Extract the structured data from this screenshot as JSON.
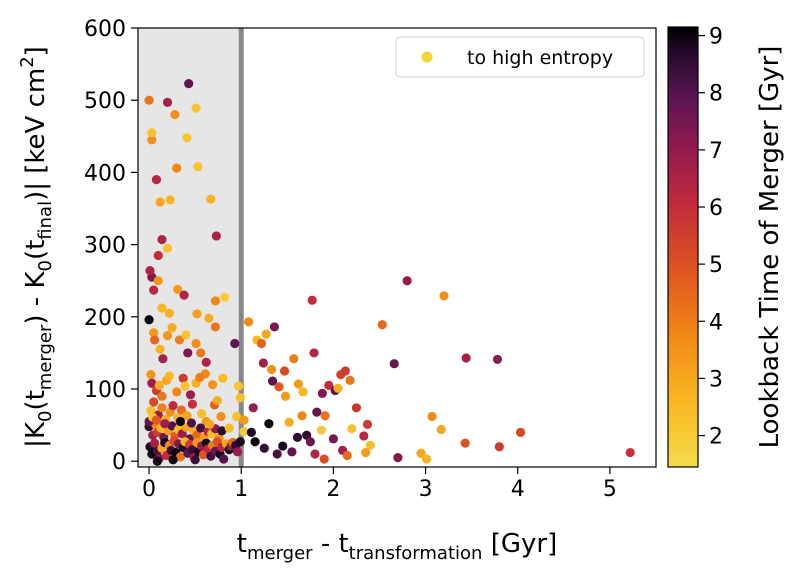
{
  "chart_data": {
    "type": "scatter",
    "xlabel": {
      "base_1": "t",
      "sub_1": "merger",
      "mid": " - t",
      "sub_2": "transformation",
      "end": " [Gyr]"
    },
    "ylabel": {
      "p1": "|K",
      "s1": "0",
      "p2": "(t",
      "s2": "merger",
      "p3": ") - K",
      "s3": "0",
      "p4": "(t",
      "s4": "final",
      "p5": ")| [keV cm",
      "sup": "2",
      "p6": "]"
    },
    "xlim": [
      -0.12,
      5.5
    ],
    "ylim": [
      -8,
      600
    ],
    "xticks": [
      0,
      1,
      2,
      3,
      4,
      5
    ],
    "yticks": [
      0,
      100,
      200,
      300,
      400,
      500,
      600
    ],
    "grid": false,
    "shaded_region": {
      "x_from": -0.12,
      "x_to": 1.0,
      "color": "#e6e6e6"
    },
    "vertical_line": {
      "x": 1.0,
      "color": "#888888"
    },
    "legend": {
      "position": "top-right",
      "entries": [
        {
          "label": "to high entropy",
          "color": "#f1d534"
        }
      ]
    },
    "colorbar": {
      "label": "Lookback Time of Merger [Gyr]",
      "min": 1.45,
      "max": 9.15,
      "ticks": [
        2,
        3,
        4,
        5,
        6,
        7,
        8,
        9
      ],
      "colormap": "inferno-like (reversed)"
    },
    "series": [
      {
        "label": "to high entropy",
        "points": [
          [
            0.0,
            500,
            4.2
          ],
          [
            0.03,
            445,
            3.6
          ],
          [
            0.03,
            455,
            2.3
          ],
          [
            0.08,
            390,
            6.3
          ],
          [
            0.12,
            359,
            3.0
          ],
          [
            0.1,
            285,
            6.0
          ],
          [
            0.14,
            307,
            6.5
          ],
          [
            0.2,
            295,
            2.3
          ],
          [
            0.23,
            362,
            2.6
          ],
          [
            0.2,
            497,
            6.7
          ],
          [
            0.28,
            480,
            3.6
          ],
          [
            0.3,
            406,
            3.8
          ],
          [
            0.41,
            448,
            2.2
          ],
          [
            0.43,
            523,
            7.8
          ],
          [
            0.51,
            489,
            2.2
          ],
          [
            0.53,
            408,
            2.3
          ],
          [
            0.67,
            363,
            2.8
          ],
          [
            0.73,
            312,
            6.5
          ],
          [
            0.82,
            227,
            2.0
          ],
          [
            0.72,
            222,
            3.8
          ],
          [
            0.03,
            255,
            7.3
          ],
          [
            0.1,
            250,
            3.4
          ],
          [
            0.05,
            237,
            6.2
          ],
          [
            0.01,
            264,
            6.5
          ],
          [
            0.14,
            212,
            2.6
          ],
          [
            0.22,
            205,
            2.8
          ],
          [
            0.31,
            238,
            3.3
          ],
          [
            0.38,
            230,
            6.4
          ],
          [
            0.52,
            204,
            3.2
          ],
          [
            0.0,
            196,
            9.0
          ],
          [
            0.05,
            178,
            3.4
          ],
          [
            0.06,
            168,
            4.5
          ],
          [
            0.12,
            155,
            2.7
          ],
          [
            0.15,
            142,
            6.6
          ],
          [
            0.2,
            174,
            3.4
          ],
          [
            0.25,
            185,
            2.9
          ],
          [
            0.33,
            168,
            4.0
          ],
          [
            0.4,
            175,
            2.2
          ],
          [
            0.42,
            150,
            7.4
          ],
          [
            0.51,
            163,
            3.6
          ],
          [
            0.56,
            150,
            4.1
          ],
          [
            0.61,
            121,
            3.7
          ],
          [
            0.62,
            137,
            6.5
          ],
          [
            0.65,
            198,
            2.9
          ],
          [
            0.72,
            186,
            4.2
          ],
          [
            0.8,
            115,
            2.5
          ],
          [
            0.02,
            120,
            3.5
          ],
          [
            0.03,
            108,
            6.8
          ],
          [
            0.08,
            98,
            5.6
          ],
          [
            0.11,
            105,
            2.9
          ],
          [
            0.14,
            90,
            4.2
          ],
          [
            0.19,
            112,
            3.1
          ],
          [
            0.22,
            118,
            2.6
          ],
          [
            0.3,
            96,
            3.8
          ],
          [
            0.37,
            115,
            5.6
          ],
          [
            0.39,
            104,
            2.3
          ],
          [
            0.45,
            92,
            6.9
          ],
          [
            0.51,
            108,
            2.8
          ],
          [
            0.55,
            116,
            4.0
          ],
          [
            0.69,
            106,
            3.5
          ],
          [
            0.02,
            70,
            2.4
          ],
          [
            0.05,
            82,
            5.2
          ],
          [
            0.1,
            64,
            7.0
          ],
          [
            0.14,
            74,
            3.9
          ],
          [
            0.18,
            58,
            2.9
          ],
          [
            0.23,
            68,
            3.6
          ],
          [
            0.26,
            77,
            6.1
          ],
          [
            0.31,
            60,
            2.7
          ],
          [
            0.35,
            71,
            4.4
          ],
          [
            0.41,
            63,
            3.1
          ],
          [
            0.47,
            79,
            5.9
          ],
          [
            0.57,
            66,
            2.4
          ],
          [
            0.62,
            55,
            3.4
          ],
          [
            0.71,
            78,
            4.6
          ],
          [
            0.74,
            84,
            2.9
          ],
          [
            0.78,
            62,
            3.6
          ],
          [
            0.0,
            48,
            8.5
          ],
          [
            0.04,
            36,
            6.7
          ],
          [
            0.07,
            51,
            3.8
          ],
          [
            0.09,
            40,
            5.5
          ],
          [
            0.13,
            46,
            2.6
          ],
          [
            0.16,
            33,
            7.5
          ],
          [
            0.21,
            42,
            3.3
          ],
          [
            0.25,
            49,
            8.0
          ],
          [
            0.28,
            35,
            4.7
          ],
          [
            0.32,
            44,
            2.5
          ],
          [
            0.36,
            38,
            6.9
          ],
          [
            0.4,
            47,
            3.0
          ],
          [
            0.44,
            31,
            7.8
          ],
          [
            0.48,
            43,
            2.8
          ],
          [
            0.52,
            36,
            4.5
          ],
          [
            0.56,
            46,
            8.3
          ],
          [
            0.6,
            33,
            3.2
          ],
          [
            0.64,
            41,
            6.2
          ],
          [
            0.68,
            38,
            2.4
          ],
          [
            0.72,
            45,
            7.1
          ],
          [
            0.76,
            32,
            3.5
          ],
          [
            0.79,
            42,
            8.6
          ],
          [
            0.01,
            20,
            8.8
          ],
          [
            0.03,
            10,
            9.0
          ],
          [
            0.06,
            25,
            6.6
          ],
          [
            0.09,
            14,
            8.2
          ],
          [
            0.11,
            4,
            7.4
          ],
          [
            0.14,
            18,
            3.0
          ],
          [
            0.17,
            26,
            8.9
          ],
          [
            0.19,
            8,
            6.0
          ],
          [
            0.22,
            22,
            3.7
          ],
          [
            0.24,
            15,
            8.5
          ],
          [
            0.27,
            28,
            5.2
          ],
          [
            0.29,
            12,
            9.0
          ],
          [
            0.32,
            24,
            7.3
          ],
          [
            0.34,
            6,
            4.2
          ],
          [
            0.37,
            19,
            8.7
          ],
          [
            0.39,
            27,
            2.7
          ],
          [
            0.42,
            11,
            7.9
          ],
          [
            0.44,
            23,
            5.5
          ],
          [
            0.47,
            16,
            8.4
          ],
          [
            0.49,
            5,
            6.7
          ],
          [
            0.52,
            26,
            3.3
          ],
          [
            0.54,
            13,
            8.8
          ],
          [
            0.57,
            21,
            7.0
          ],
          [
            0.59,
            9,
            4.8
          ],
          [
            0.62,
            25,
            9.0
          ],
          [
            0.64,
            17,
            6.1
          ],
          [
            0.67,
            7,
            8.3
          ],
          [
            0.69,
            22,
            3.9
          ],
          [
            0.72,
            14,
            7.6
          ],
          [
            0.74,
            27,
            5.0
          ],
          [
            0.77,
            10,
            8.9
          ],
          [
            0.79,
            19,
            6.4
          ],
          [
            0.81,
            3,
            8.0
          ],
          [
            0.84,
            24,
            3.1
          ],
          [
            0.87,
            16,
            9.0
          ],
          [
            0.89,
            21,
            7.2
          ],
          [
            0.91,
            26,
            4.4
          ],
          [
            0.94,
            22,
            8.6
          ],
          [
            0.96,
            13,
            6.9
          ],
          [
            0.99,
            27,
            8.8
          ],
          [
            0.09,
            0,
            8.9
          ],
          [
            0.26,
            2,
            9.0
          ],
          [
            0.5,
            2,
            8.4
          ],
          [
            0.0,
            55,
            7.7
          ],
          [
            0.04,
            61,
            2.2
          ],
          [
            0.08,
            57,
            4.8
          ],
          [
            0.17,
            52,
            6.8
          ],
          [
            0.34,
            55,
            9.0
          ],
          [
            0.46,
            53,
            8.1
          ],
          [
            0.66,
            51,
            3.0
          ],
          [
            0.87,
            46,
            2.5
          ],
          [
            0.95,
            62,
            2.3
          ],
          [
            0.93,
            163,
            7.9
          ],
          [
            0.97,
            104,
            2.2
          ],
          [
            0.99,
            88,
            2.4
          ],
          [
            1.03,
            57,
            3.4
          ],
          [
            1.03,
            41,
            2.0
          ],
          [
            1.08,
            193,
            3.7
          ],
          [
            1.13,
            74,
            6.9
          ],
          [
            1.17,
            168,
            2.5
          ],
          [
            1.22,
            163,
            4.6
          ],
          [
            1.27,
            176,
            3.0
          ],
          [
            1.24,
            136,
            6.7
          ],
          [
            1.33,
            127,
            3.6
          ],
          [
            1.34,
            111,
            7.9
          ],
          [
            1.36,
            186,
            7.4
          ],
          [
            1.41,
            103,
            4.8
          ],
          [
            1.47,
            125,
            5.2
          ],
          [
            1.48,
            90,
            3.3
          ],
          [
            1.52,
            54,
            2.9
          ],
          [
            1.57,
            142,
            4.0
          ],
          [
            1.62,
            107,
            3.3
          ],
          [
            1.67,
            96,
            2.6
          ],
          [
            1.66,
            63,
            3.8
          ],
          [
            1.77,
            223,
            6.0
          ],
          [
            1.79,
            150,
            6.3
          ],
          [
            1.82,
            68,
            7.7
          ],
          [
            1.87,
            43,
            2.1
          ],
          [
            1.88,
            94,
            7.3
          ],
          [
            1.91,
            63,
            4.2
          ],
          [
            1.95,
            105,
            6.0
          ],
          [
            2.02,
            98,
            7.9
          ],
          [
            2.05,
            101,
            2.9
          ],
          [
            2.08,
            120,
            5.4
          ],
          [
            2.13,
            125,
            5.6
          ],
          [
            2.18,
            112,
            4.1
          ],
          [
            2.2,
            45,
            2.3
          ],
          [
            2.25,
            74,
            5.7
          ],
          [
            2.33,
            35,
            6.3
          ],
          [
            2.35,
            12,
            3.3
          ],
          [
            2.37,
            51,
            5.6
          ],
          [
            2.53,
            189,
            4.5
          ],
          [
            2.66,
            135,
            7.7
          ],
          [
            2.7,
            5,
            7.3
          ],
          [
            2.8,
            250,
            7.0
          ],
          [
            2.95,
            11,
            3.1
          ],
          [
            3.01,
            3,
            2.7
          ],
          [
            3.07,
            62,
            3.7
          ],
          [
            3.17,
            44,
            3.0
          ],
          [
            3.2,
            229,
            3.6
          ],
          [
            3.43,
            25,
            4.9
          ],
          [
            3.44,
            143,
            6.6
          ],
          [
            3.78,
            141,
            7.2
          ],
          [
            3.8,
            20,
            5.6
          ],
          [
            4.03,
            40,
            5.3
          ],
          [
            5.22,
            12,
            5.9
          ],
          [
            1.11,
            40,
            8.8
          ],
          [
            1.15,
            27,
            9.0
          ],
          [
            1.25,
            18,
            8.5
          ],
          [
            1.3,
            52,
            9.0
          ],
          [
            1.39,
            10,
            8.2
          ],
          [
            1.45,
            21,
            8.8
          ],
          [
            1.55,
            13,
            7.8
          ],
          [
            1.61,
            33,
            8.6
          ],
          [
            1.71,
            36,
            8.5
          ],
          [
            1.75,
            27,
            7.6
          ],
          [
            1.8,
            10,
            6.4
          ],
          [
            1.9,
            3,
            5.1
          ],
          [
            2.0,
            31,
            7.5
          ],
          [
            2.1,
            15,
            6.7
          ],
          [
            2.15,
            8,
            4.4
          ],
          [
            2.4,
            22,
            2.4
          ]
        ]
      }
    ]
  }
}
